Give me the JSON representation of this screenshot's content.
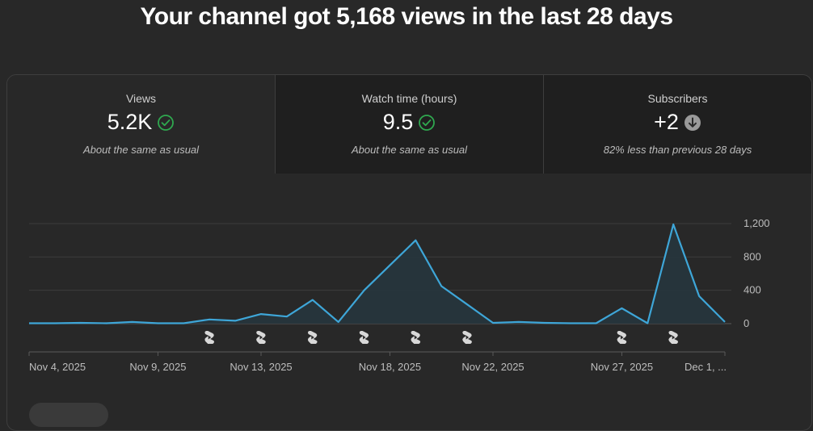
{
  "headline": "Your channel got 5,168 views in the last 28 days",
  "tabs": [
    {
      "label": "Views",
      "value": "5.2K",
      "note": "About the same as usual",
      "status_icon": "check-circle-icon"
    },
    {
      "label": "Watch time (hours)",
      "value": "9.5",
      "note": "About the same as usual",
      "status_icon": "check-circle-icon"
    },
    {
      "label": "Subscribers",
      "value": "+2",
      "note": "82% less than previous 28 days",
      "status_icon": "down-arrow-circle-icon"
    }
  ],
  "colors": {
    "line": "#3ea6d8",
    "area": "#26353c",
    "check": "#2fa84f",
    "down": "#9a9a9a"
  },
  "chart_data": {
    "type": "area",
    "x": [
      "Nov 4, 2025",
      "Nov 5, 2025",
      "Nov 6, 2025",
      "Nov 7, 2025",
      "Nov 8, 2025",
      "Nov 9, 2025",
      "Nov 10, 2025",
      "Nov 11, 2025",
      "Nov 12, 2025",
      "Nov 13, 2025",
      "Nov 14, 2025",
      "Nov 15, 2025",
      "Nov 16, 2025",
      "Nov 17, 2025",
      "Nov 18, 2025",
      "Nov 19, 2025",
      "Nov 20, 2025",
      "Nov 21, 2025",
      "Nov 22, 2025",
      "Nov 23, 2025",
      "Nov 24, 2025",
      "Nov 25, 2025",
      "Nov 26, 2025",
      "Nov 27, 2025",
      "Nov 28, 2025",
      "Nov 29, 2025",
      "Nov 30, 2025",
      "Dec 1, 2025"
    ],
    "values": [
      5,
      5,
      10,
      5,
      20,
      5,
      5,
      50,
      35,
      115,
      85,
      285,
      20,
      400,
      700,
      1000,
      450,
      230,
      10,
      20,
      10,
      5,
      5,
      185,
      5,
      1190,
      330,
      20
    ],
    "xtick_labels": [
      "Nov 4, 2025",
      "Nov 9, 2025",
      "Nov 13, 2025",
      "Nov 18, 2025",
      "Nov 22, 2025",
      "Nov 27, 2025",
      "Dec 1, ..."
    ],
    "xtick_dates": [
      "Nov 4, 2025",
      "Nov 9, 2025",
      "Nov 13, 2025",
      "Nov 18, 2025",
      "Nov 22, 2025",
      "Nov 27, 2025",
      "Dec 1, 2025"
    ],
    "ytick_labels": [
      "1,200",
      "800",
      "400",
      "0"
    ],
    "yticks": [
      1200,
      800,
      400,
      0
    ],
    "ylim": [
      0,
      1200
    ],
    "shorts_markers": [
      "Nov 11, 2025",
      "Nov 13, 2025",
      "Nov 15, 2025",
      "Nov 17, 2025",
      "Nov 19, 2025",
      "Nov 21, 2025",
      "Nov 27, 2025",
      "Nov 29, 2025"
    ],
    "grid": true,
    "title": "",
    "xlabel": "",
    "ylabel": ""
  }
}
